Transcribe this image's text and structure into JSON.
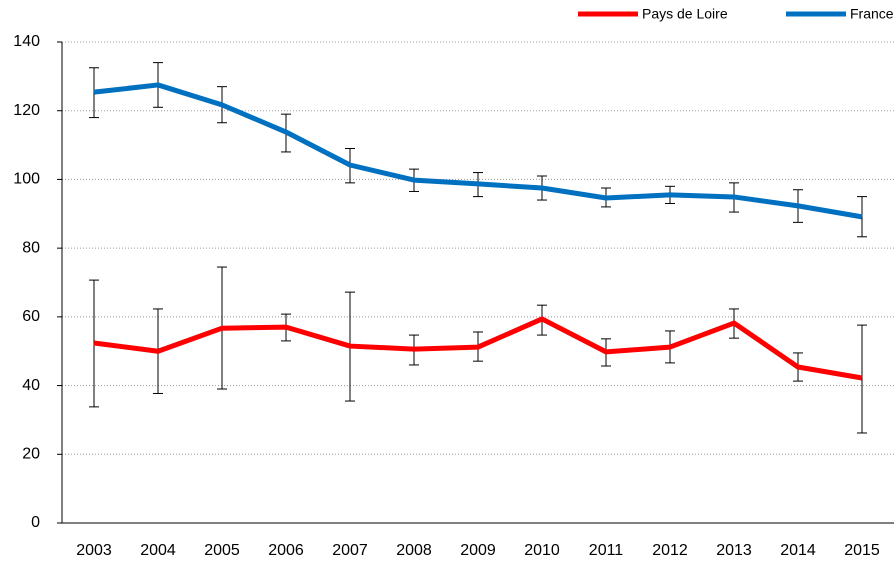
{
  "chart_data": {
    "type": "line",
    "categories": [
      "2003",
      "2004",
      "2005",
      "2006",
      "2007",
      "2008",
      "2009",
      "2010",
      "2011",
      "2012",
      "2013",
      "2014",
      "2015"
    ],
    "series": [
      {
        "name": "Pays de Loire",
        "color": "#ff0000",
        "values": [
          52.4,
          50,
          56.7,
          57,
          51.5,
          50.6,
          51.2,
          59.4,
          49.8,
          51.2,
          58.2,
          45.4,
          42.2
        ],
        "lower": [
          33.8,
          37.7,
          39,
          53,
          35.5,
          46,
          47.1,
          54.7,
          45.7,
          46.6,
          53.8,
          41.3,
          26.2
        ],
        "upper": [
          70.7,
          62.3,
          74.5,
          60.8,
          67.2,
          54.7,
          55.6,
          63.4,
          53.6,
          55.9,
          62.3,
          49.5,
          57.6
        ]
      },
      {
        "name": "France",
        "color": "#0070c0",
        "values": [
          125.4,
          127.5,
          121.7,
          113.8,
          104.2,
          99.8,
          98.7,
          97.5,
          94.6,
          95.5,
          94.9,
          92.3,
          89.1
        ],
        "lower": [
          118,
          121,
          116.5,
          108,
          99,
          96.5,
          95,
          94,
          92,
          93,
          90.5,
          87.5,
          83.3
        ],
        "upper": [
          132.5,
          134,
          127,
          119,
          109,
          103,
          102,
          101,
          97.5,
          98,
          99,
          97,
          95
        ]
      }
    ],
    "ylim": [
      0,
      140
    ],
    "yticks": [
      0,
      20,
      40,
      60,
      80,
      100,
      120,
      140
    ],
    "grid": true,
    "legend": "top-right"
  }
}
